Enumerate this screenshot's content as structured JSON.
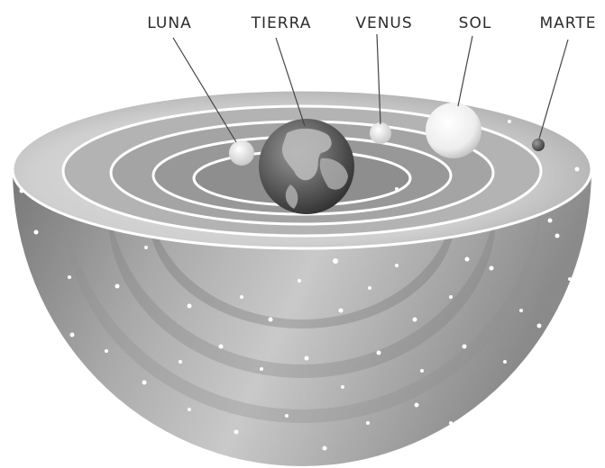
{
  "labels": {
    "luna": "LUNA",
    "tierra": "TIERRA",
    "venus": "VENUS",
    "sol": "SOL",
    "marte": "MARTE"
  },
  "colors": {
    "background": "#ffffff",
    "shell_light": "#dcdcdc",
    "shell_dark": "#6a6a6a",
    "orbit_line": "#ffffff",
    "leader_line": "#444444",
    "earth_ocean": "#3c3c3c",
    "earth_land": "#bdbdbd",
    "sun": "#f2f2f2",
    "mars": "#5a5a5a"
  },
  "icons": {
    "luna": "moon-icon",
    "tierra": "earth-icon",
    "venus": "venus-planet-icon",
    "sol": "sun-icon",
    "marte": "mars-planet-icon"
  }
}
